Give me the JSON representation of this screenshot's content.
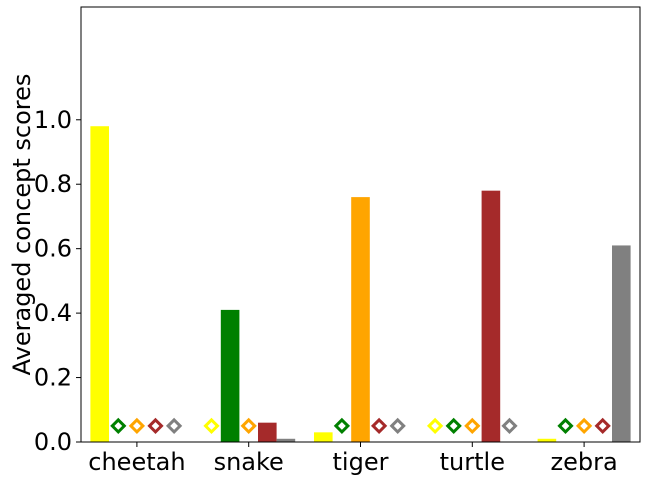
{
  "chart_data": {
    "type": "bar",
    "title": "",
    "xlabel": "",
    "ylabel": "Averaged concept scores",
    "ylim": [
      0,
      1.35
    ],
    "yticks": [
      "0.0",
      "0.2",
      "0.4",
      "0.6",
      "0.8",
      "1.0"
    ],
    "categories": [
      "cheetah",
      "snake",
      "tiger",
      "turtle",
      "zebra"
    ],
    "grid": false,
    "legend": "none",
    "series": [
      {
        "color": "#ffff00",
        "values": [
          0.98,
          0.0,
          0.03,
          0.0,
          0.01
        ]
      },
      {
        "color": "#008000",
        "values": [
          0.0,
          0.41,
          0.0,
          0.0,
          0.0
        ]
      },
      {
        "color": "#ffa500",
        "values": [
          0.0,
          0.0,
          0.76,
          0.0,
          0.0
        ]
      },
      {
        "color": "#a52a2a",
        "values": [
          0.0,
          0.06,
          0.0,
          0.78,
          0.0
        ]
      },
      {
        "color": "#808080",
        "values": [
          0.0,
          0.01,
          0.0,
          0.0,
          0.61
        ]
      }
    ],
    "zero_marker": "hollow-diamond"
  }
}
